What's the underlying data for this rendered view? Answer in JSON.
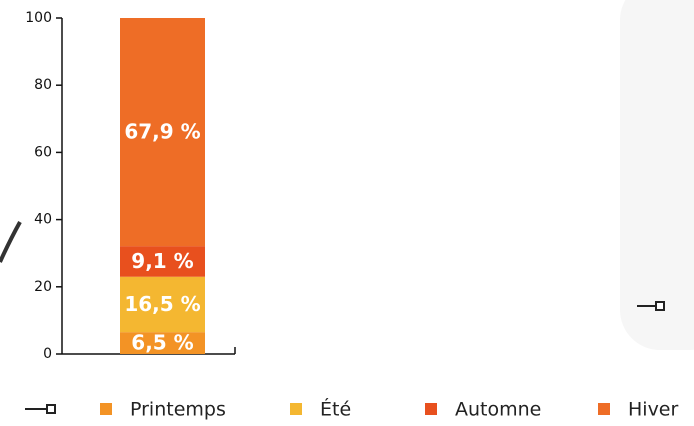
{
  "chart_data": {
    "type": "stacked-bar",
    "categories": [
      null
    ],
    "series": [
      {
        "name": "Printemps",
        "color": "#f39325",
        "values": [
          6.5
        ],
        "value_labels": [
          "6,5 %"
        ]
      },
      {
        "name": "Été",
        "color": "#f4b731",
        "values": [
          16.5
        ],
        "value_labels": [
          "16,5 %"
        ]
      },
      {
        "name": "Automne",
        "color": "#e8501e",
        "values": [
          9.1
        ],
        "value_labels": [
          "9,1 %"
        ]
      },
      {
        "name": "Hiver",
        "color": "#ee6d26",
        "values": [
          67.9
        ],
        "value_labels": [
          "67,9 %"
        ]
      }
    ],
    "ylim": [
      0,
      100
    ],
    "yticks": [
      0,
      20,
      40,
      60,
      80,
      100
    ],
    "grid": false,
    "legend": "bottom"
  }
}
